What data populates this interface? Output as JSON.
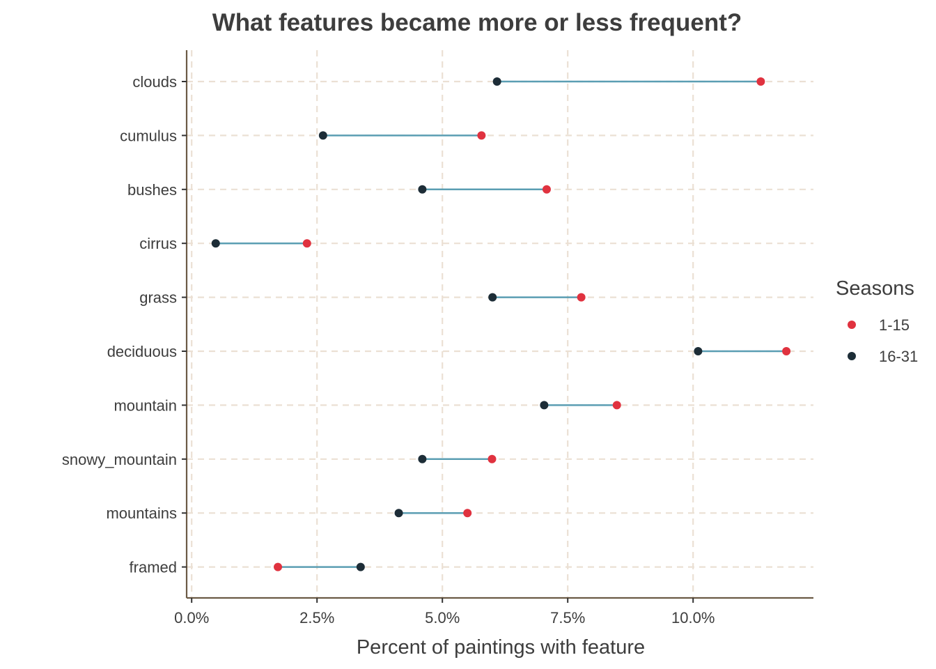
{
  "chart_data": {
    "type": "dumbbell",
    "title": "What features became more or less frequent?",
    "xlabel": "Percent of paintings with feature",
    "ylabel": "",
    "xlim": [
      -0.1,
      12.4
    ],
    "x_ticks": [
      0,
      2.5,
      5,
      7.5,
      10
    ],
    "x_tick_labels": [
      "0.0%",
      "2.5%",
      "5.0%",
      "7.5%",
      "10.0%"
    ],
    "grid": true,
    "legend": {
      "title": "Seasons",
      "position": "right"
    },
    "categories": [
      "clouds",
      "cumulus",
      "bushes",
      "cirrus",
      "grass",
      "deciduous",
      "mountain",
      "snowy_mountain",
      "mountains",
      "framed"
    ],
    "series": [
      {
        "name": "1-15",
        "color": "#e0323f",
        "values": [
          11.35,
          5.78,
          7.08,
          2.3,
          7.77,
          11.86,
          8.48,
          5.99,
          5.5,
          1.72
        ]
      },
      {
        "name": "16-31",
        "color": "#1d2d37",
        "values": [
          6.09,
          2.62,
          4.6,
          0.48,
          6.0,
          10.1,
          7.03,
          4.6,
          4.13,
          3.37
        ]
      }
    ],
    "segment_color": "#5b9eb3",
    "grid_color": "#ebe0d4",
    "axis_color": "#6b5a45"
  }
}
